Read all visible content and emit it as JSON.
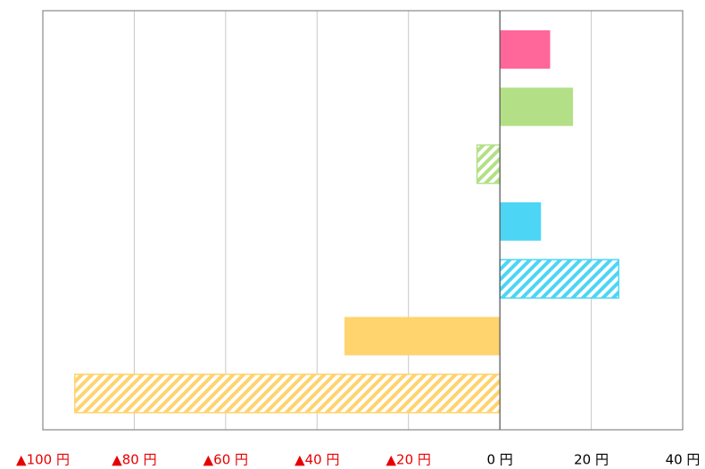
{
  "chart_data": {
    "type": "bar",
    "orientation": "horizontal",
    "categories": [
      null,
      null,
      null,
      null,
      null,
      null,
      null
    ],
    "values": [
      11,
      16,
      -5,
      9,
      26,
      -34,
      -93
    ],
    "colors": [
      "#ff6699",
      "#b3e086",
      "#b3e086",
      "#4dd5f5",
      "#4dd5f5",
      "#ffd36e",
      "#ffd36e"
    ],
    "hatched": [
      false,
      false,
      true,
      false,
      true,
      false,
      true
    ],
    "xlim": [
      -100,
      40
    ],
    "xticks": [
      {
        "value": -100,
        "label": "▲100 円"
      },
      {
        "value": -80,
        "label": "▲80 円"
      },
      {
        "value": -60,
        "label": "▲60 円"
      },
      {
        "value": -40,
        "label": "▲40 円"
      },
      {
        "value": -20,
        "label": "▲20 円"
      },
      {
        "value": 0,
        "label": "0 円"
      },
      {
        "value": 20,
        "label": "20 円"
      },
      {
        "value": 40,
        "label": "40 円"
      }
    ],
    "negative_tick_color": "#e60000",
    "grid": true
  }
}
